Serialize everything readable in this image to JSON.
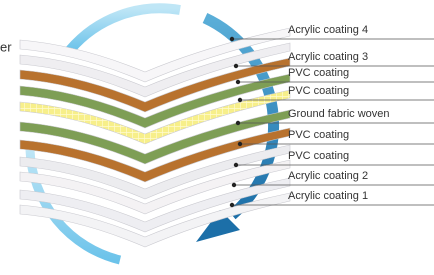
{
  "side_text": "er",
  "layers": [
    {
      "label": "Acrylic coating 4"
    },
    {
      "label": "Acrylic coating 3"
    },
    {
      "label": "PVC coating"
    },
    {
      "label": "PVC coating"
    },
    {
      "label": "Ground fabric woven"
    },
    {
      "label": "PVC coating"
    },
    {
      "label": "PVC coating"
    },
    {
      "label": "Acrylic coating 2"
    },
    {
      "label": "Acrylic coating 1"
    }
  ]
}
